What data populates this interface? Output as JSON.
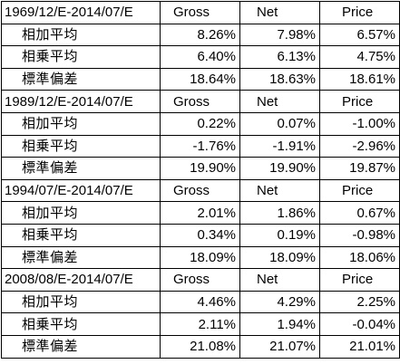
{
  "columns": {
    "gross": "Gross",
    "net": "Net",
    "price": "Price"
  },
  "blocks": [
    {
      "period": "1969/12/E-2014/07/E",
      "rows": [
        {
          "label": "相加平均",
          "gross": "8.26%",
          "net": "7.98%",
          "price": "6.57%"
        },
        {
          "label": "相乗平均",
          "gross": "6.40%",
          "net": "6.13%",
          "price": "4.75%"
        },
        {
          "label": "標準偏差",
          "gross": "18.64%",
          "net": "18.63%",
          "price": "18.61%"
        }
      ]
    },
    {
      "period": "1989/12/E-2014/07/E",
      "rows": [
        {
          "label": "相加平均",
          "gross": "0.22%",
          "net": "0.07%",
          "price": "-1.00%"
        },
        {
          "label": "相乗平均",
          "gross": "-1.76%",
          "net": "-1.91%",
          "price": "-2.96%"
        },
        {
          "label": "標準偏差",
          "gross": "19.90%",
          "net": "19.90%",
          "price": "19.87%"
        }
      ]
    },
    {
      "period": "1994/07/E-2014/07/E",
      "rows": [
        {
          "label": "相加平均",
          "gross": "2.01%",
          "net": "1.86%",
          "price": "0.67%"
        },
        {
          "label": "相乗平均",
          "gross": "0.34%",
          "net": "0.19%",
          "price": "-0.98%"
        },
        {
          "label": "標準偏差",
          "gross": "18.09%",
          "net": "18.09%",
          "price": "18.06%"
        }
      ]
    },
    {
      "period": "2008/08/E-2014/07/E",
      "rows": [
        {
          "label": "相加平均",
          "gross": "4.46%",
          "net": "4.29%",
          "price": "2.25%"
        },
        {
          "label": "相乗平均",
          "gross": "2.11%",
          "net": "1.94%",
          "price": "-0.04%"
        },
        {
          "label": "標準偏差",
          "gross": "21.08%",
          "net": "21.07%",
          "price": "21.01%"
        }
      ]
    }
  ]
}
